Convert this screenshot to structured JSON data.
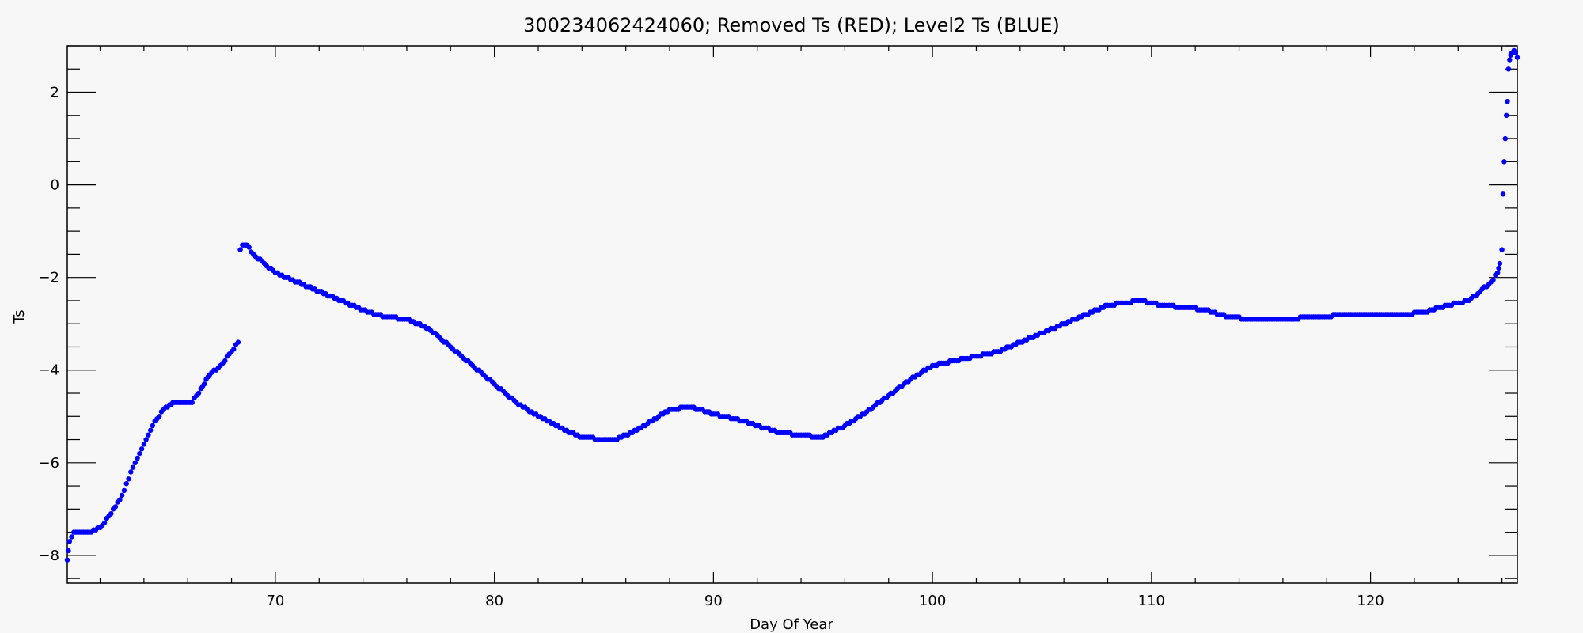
{
  "chart_data": {
    "type": "scatter",
    "title": "300234062424060; Removed Ts (RED); Level2 Ts (BLUE)",
    "xlabel": "Day Of Year",
    "ylabel": "Ts",
    "xlim": [
      60.5,
      126.7
    ],
    "ylim": [
      -8.6,
      3.0
    ],
    "xticks": [
      70,
      80,
      90,
      100,
      110,
      120
    ],
    "yticks": [
      -8,
      -6,
      -4,
      -2,
      0,
      2
    ],
    "grid": false,
    "colors": {
      "level2": "#0000ff",
      "removed": "#ff0000"
    },
    "series": [
      {
        "name": "Level2 Ts (BLUE)",
        "color": "#0000ff",
        "segments": [
          [
            [
              60.5,
              -8.1
            ],
            [
              60.6,
              -7.7
            ],
            [
              60.8,
              -7.5
            ],
            [
              61.5,
              -7.5
            ],
            [
              62.0,
              -7.4
            ],
            [
              62.5,
              -7.1
            ],
            [
              63.0,
              -6.7
            ],
            [
              63.5,
              -6.1
            ],
            [
              64.0,
              -5.6
            ],
            [
              64.5,
              -5.1
            ],
            [
              65.0,
              -4.8
            ],
            [
              65.4,
              -4.7
            ],
            [
              66.2,
              -4.7
            ],
            [
              66.6,
              -4.4
            ],
            [
              67.0,
              -4.1
            ],
            [
              67.5,
              -3.9
            ],
            [
              68.0,
              -3.6
            ],
            [
              68.3,
              -3.4
            ]
          ],
          [
            [
              68.4,
              -1.4
            ],
            [
              68.5,
              -1.3
            ],
            [
              68.7,
              -1.3
            ],
            [
              69.0,
              -1.5
            ],
            [
              69.5,
              -1.7
            ],
            [
              70.0,
              -1.9
            ],
            [
              71.0,
              -2.1
            ],
            [
              72.0,
              -2.3
            ],
            [
              73.0,
              -2.5
            ],
            [
              74.0,
              -2.7
            ],
            [
              75.0,
              -2.85
            ],
            [
              76.0,
              -2.9
            ],
            [
              77.0,
              -3.1
            ],
            [
              78.0,
              -3.5
            ],
            [
              79.0,
              -3.9
            ],
            [
              80.0,
              -4.3
            ],
            [
              81.0,
              -4.7
            ],
            [
              82.0,
              -5.0
            ],
            [
              83.0,
              -5.25
            ],
            [
              84.0,
              -5.45
            ],
            [
              85.0,
              -5.5
            ],
            [
              85.5,
              -5.5
            ],
            [
              86.5,
              -5.3
            ],
            [
              87.5,
              -5.0
            ],
            [
              88.0,
              -4.85
            ],
            [
              89.0,
              -4.8
            ],
            [
              90.0,
              -4.95
            ],
            [
              91.0,
              -5.05
            ],
            [
              92.0,
              -5.2
            ],
            [
              93.0,
              -5.35
            ],
            [
              94.0,
              -5.4
            ],
            [
              95.0,
              -5.45
            ],
            [
              96.0,
              -5.2
            ],
            [
              97.0,
              -4.9
            ],
            [
              98.0,
              -4.55
            ],
            [
              99.0,
              -4.2
            ],
            [
              100.0,
              -3.9
            ],
            [
              101.0,
              -3.8
            ],
            [
              102.0,
              -3.7
            ],
            [
              103.0,
              -3.6
            ],
            [
              104.0,
              -3.4
            ],
            [
              105.0,
              -3.2
            ],
            [
              106.0,
              -3.0
            ],
            [
              107.0,
              -2.8
            ],
            [
              108.0,
              -2.6
            ],
            [
              108.8,
              -2.55
            ],
            [
              109.5,
              -2.5
            ],
            [
              110.5,
              -2.6
            ],
            [
              111.5,
              -2.65
            ],
            [
              112.5,
              -2.7
            ],
            [
              113.5,
              -2.85
            ],
            [
              114.5,
              -2.9
            ],
            [
              116.0,
              -2.9
            ],
            [
              117.5,
              -2.85
            ],
            [
              119.0,
              -2.8
            ],
            [
              120.5,
              -2.8
            ],
            [
              121.5,
              -2.8
            ],
            [
              122.5,
              -2.75
            ],
            [
              123.5,
              -2.6
            ],
            [
              124.5,
              -2.5
            ],
            [
              125.0,
              -2.3
            ],
            [
              125.5,
              -2.1
            ],
            [
              125.8,
              -1.9
            ],
            [
              125.9,
              -1.7
            ],
            [
              126.0,
              -1.4
            ],
            [
              126.05,
              -0.2
            ],
            [
              126.1,
              0.5
            ],
            [
              126.2,
              1.5
            ],
            [
              126.25,
              1.8
            ],
            [
              126.3,
              2.5
            ],
            [
              126.35,
              2.7
            ],
            [
              126.45,
              2.85
            ],
            [
              126.55,
              2.9
            ],
            [
              126.7,
              2.75
            ]
          ]
        ]
      }
    ]
  }
}
